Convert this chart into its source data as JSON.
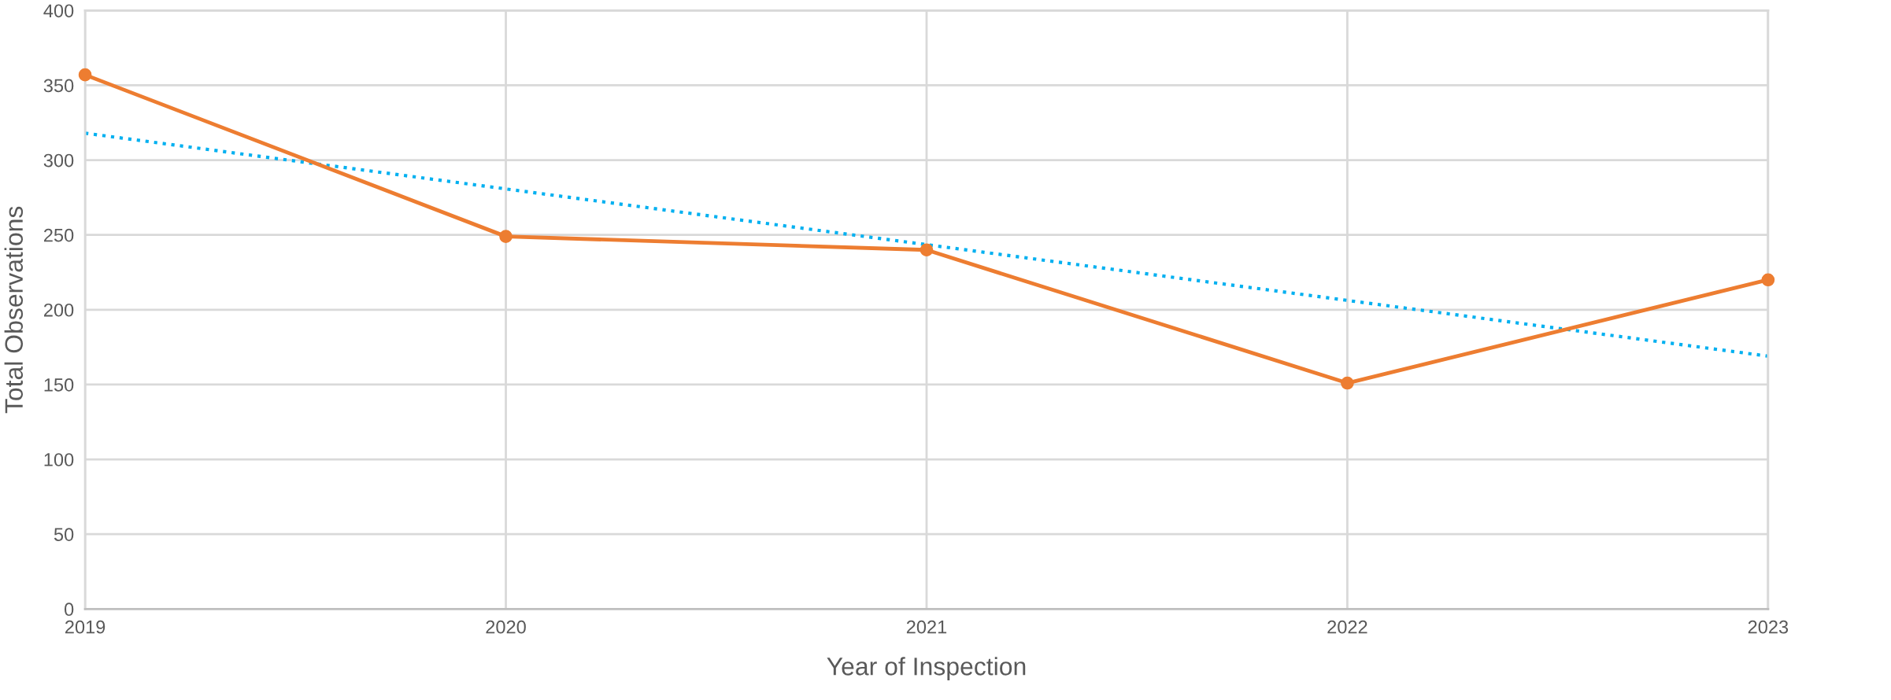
{
  "chart_data": {
    "type": "line",
    "xlabel": "Year of Inspection",
    "ylabel": "Total Observations",
    "x": [
      2019,
      2020,
      2021,
      2022,
      2023
    ],
    "series": [
      {
        "color": "#ed7d31",
        "values": [
          357,
          249,
          240,
          151,
          220
        ],
        "marker": "circle",
        "line_style": "solid"
      },
      {
        "type": "line",
        "color": "#00b0f0",
        "x": [
          2019,
          2023
        ],
        "values": [
          318,
          169
        ],
        "marker": "none",
        "line_style": "dotted"
      }
    ],
    "xlim": [
      2019,
      2023
    ],
    "xticks": [
      2019,
      2020,
      2021,
      2022,
      2023
    ],
    "ylim": [
      0,
      400
    ],
    "yticks": [
      0,
      50,
      100,
      150,
      200,
      250,
      300,
      350,
      400
    ],
    "grid": true,
    "legend": false
  }
}
